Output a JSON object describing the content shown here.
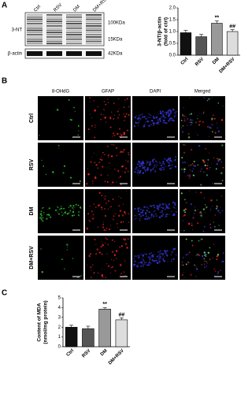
{
  "panels": [
    "A",
    "B",
    "C"
  ],
  "blot": {
    "lanes": [
      "Ctrl",
      "RSV",
      "DM",
      "DM+RSV"
    ],
    "rows": [
      "3-NT",
      "β-actin"
    ],
    "markers": [
      "100KDa",
      "15KDa",
      "42KDa"
    ]
  },
  "microscopy": {
    "channels": [
      "8-OHdG",
      "GFAP",
      "DAPI",
      "Merged"
    ],
    "groups": [
      "Ctrl",
      "RSV",
      "DM",
      "DM+RSV"
    ]
  },
  "chart_data": [
    {
      "type": "bar",
      "ylabel": [
        "3-NT/β-actin",
        "(fold of ctrl)"
      ],
      "categories": [
        "Ctrl",
        "RSV",
        "DM",
        "DM+RSV"
      ],
      "values": [
        0.95,
        0.78,
        1.35,
        1.0
      ],
      "errors": [
        0.1,
        0.1,
        0.1,
        0.08
      ],
      "annotations": [
        null,
        null,
        "**",
        "##"
      ],
      "colors": [
        "#111111",
        "#555555",
        "#999999",
        "#dddddd"
      ],
      "ylim": [
        0,
        2
      ],
      "yticks": [
        {
          "value": 0,
          "label": "0.0"
        },
        {
          "value": 0.5,
          "label": "0.5"
        },
        {
          "value": 1,
          "label": "1.0"
        },
        {
          "value": 1.5,
          "label": "1.5"
        },
        {
          "value": 2,
          "label": "2.0"
        }
      ]
    },
    {
      "type": "bar",
      "ylabel": [
        "Content of MDA",
        "(nmol/mg protein)"
      ],
      "categories": [
        "Ctrl",
        "RSV",
        "DM",
        "DM+RSV"
      ],
      "values": [
        2.0,
        1.85,
        3.85,
        2.75
      ],
      "errors": [
        0.2,
        0.25,
        0.15,
        0.2
      ],
      "annotations": [
        null,
        null,
        "**",
        "##"
      ],
      "colors": [
        "#111111",
        "#555555",
        "#999999",
        "#dddddd"
      ],
      "ylim": [
        0,
        5
      ],
      "yticks": [
        0,
        1,
        2,
        3,
        4,
        5
      ]
    }
  ]
}
